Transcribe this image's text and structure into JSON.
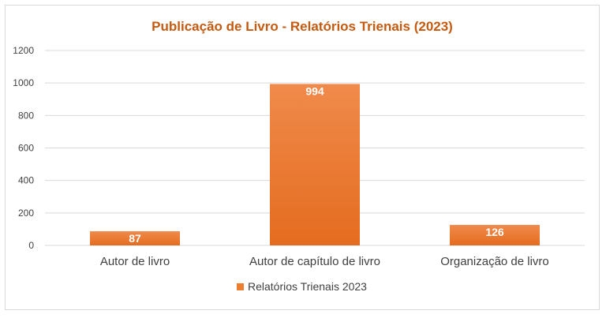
{
  "chart_data": {
    "type": "bar",
    "title": "Publicação de Livro - Relatórios Trienais (2023)",
    "categories": [
      "Autor de livro",
      "Autor de capítulo de livro",
      "Organização de livro"
    ],
    "series": [
      {
        "name": "Relatórios Trienais 2023",
        "values": [
          87,
          994,
          126
        ],
        "color": "#ed7d31"
      }
    ],
    "data_labels": [
      "87",
      "994",
      "126"
    ],
    "yticks": [
      "0",
      "200",
      "400",
      "600",
      "800",
      "1000",
      "1200"
    ],
    "ylim": [
      0,
      1200
    ],
    "grid": true,
    "legend_position": "bottom"
  }
}
